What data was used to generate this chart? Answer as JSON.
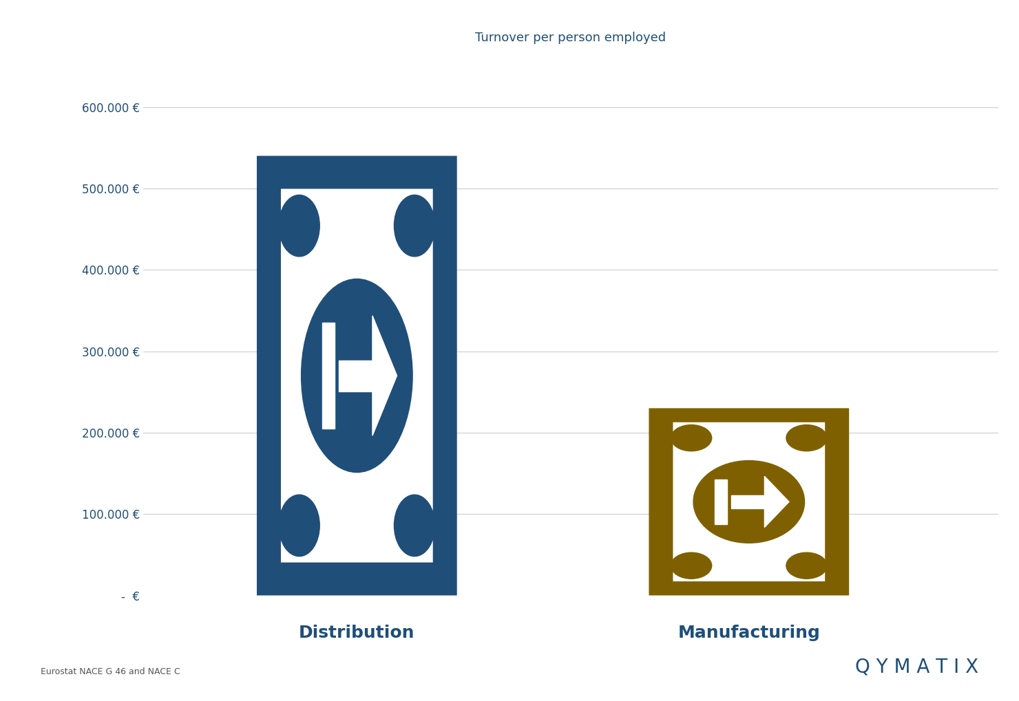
{
  "title": "Turnover per person employed",
  "categories": [
    "Distribution",
    "Manufacturing"
  ],
  "values": [
    540000,
    230000
  ],
  "bar_colors": [
    "#1f4e79",
    "#7f6000"
  ],
  "ylim": [
    0,
    660000
  ],
  "yticks": [
    0,
    100000,
    200000,
    300000,
    400000,
    500000,
    600000
  ],
  "ytick_labels": [
    "-  €",
    "100.000 €",
    "200.000 €",
    "300.000 €",
    "400.000 €",
    "500.000 €",
    "600.000 €"
  ],
  "axis_color": "#1f4e79",
  "label_color": "#1f4e79",
  "grid_color": "#cccccc",
  "background_color": "#ffffff",
  "source_text": "Eurostat NACE G 46 and NACE C",
  "brand_text": "Q Y M A T I X",
  "title_fontsize": 13,
  "label_fontsize": 18,
  "ytick_fontsize": 12,
  "brand_fontsize": 20,
  "x_positions": [
    1.0,
    2.1
  ],
  "xlim": [
    0.4,
    2.8
  ],
  "bar_width": 0.52
}
